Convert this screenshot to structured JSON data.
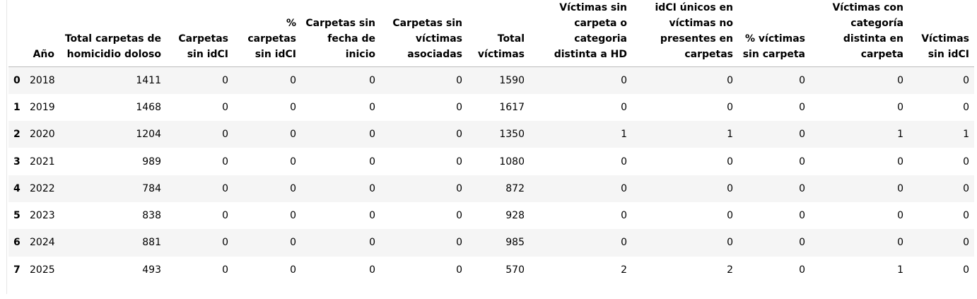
{
  "table": {
    "columns": [
      "Año",
      "Total carpetas de homicidio doloso",
      "Carpetas sin idCI",
      "% carpetas sin idCI",
      "Carpetas sin fecha de inicio",
      "Carpetas sin víctimas asociadas",
      "Total víctimas",
      "Víctimas sin carpeta o categoria distinta a HD",
      "idCI únicos en víctimas no presentes en carpetas",
      "% víctimas sin carpeta",
      "Víctimas con categoría distinta en carpeta",
      "Víctimas sin idCI"
    ],
    "rows": [
      {
        "index": "0",
        "cells": [
          "2018",
          "1411",
          "0",
          "0",
          "0",
          "0",
          "1590",
          "0",
          "0",
          "0",
          "0",
          "0"
        ]
      },
      {
        "index": "1",
        "cells": [
          "2019",
          "1468",
          "0",
          "0",
          "0",
          "0",
          "1617",
          "0",
          "0",
          "0",
          "0",
          "0"
        ]
      },
      {
        "index": "2",
        "cells": [
          "2020",
          "1204",
          "0",
          "0",
          "0",
          "0",
          "1350",
          "1",
          "1",
          "0",
          "1",
          "1"
        ]
      },
      {
        "index": "3",
        "cells": [
          "2021",
          "989",
          "0",
          "0",
          "0",
          "0",
          "1080",
          "0",
          "0",
          "0",
          "0",
          "0"
        ]
      },
      {
        "index": "4",
        "cells": [
          "2022",
          "784",
          "0",
          "0",
          "0",
          "0",
          "872",
          "0",
          "0",
          "0",
          "0",
          "0"
        ]
      },
      {
        "index": "5",
        "cells": [
          "2023",
          "838",
          "0",
          "0",
          "0",
          "0",
          "928",
          "0",
          "0",
          "0",
          "0",
          "0"
        ]
      },
      {
        "index": "6",
        "cells": [
          "2024",
          "881",
          "0",
          "0",
          "0",
          "0",
          "985",
          "0",
          "0",
          "0",
          "0",
          "0"
        ]
      },
      {
        "index": "7",
        "cells": [
          "2025",
          "493",
          "0",
          "0",
          "0",
          "0",
          "570",
          "2",
          "2",
          "0",
          "1",
          "0"
        ]
      }
    ]
  },
  "colors": {
    "stripe": "#f5f5f5",
    "header_rule": "#bdbdbd",
    "text": "#000000"
  }
}
